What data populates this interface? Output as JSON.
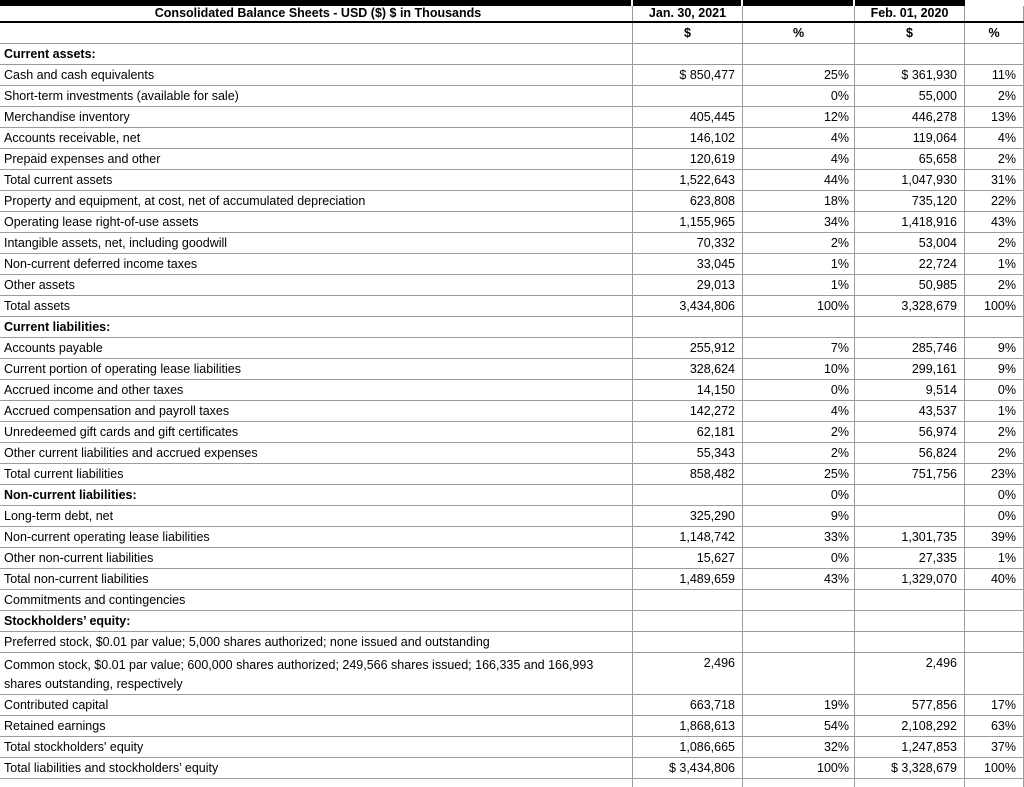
{
  "table": {
    "title": "Consolidated Balance Sheets - USD ($) $ in Thousands",
    "columns": {
      "period_1": "Jan. 30, 2021",
      "period_2": "Feb. 01, 2020",
      "dollar": "$",
      "percent": "%"
    }
  },
  "colors": {
    "top_bar": "#000000",
    "grid_border": "#9b9b9b",
    "title_rule": "#000000",
    "text": "#000000",
    "background": "#ffffff"
  },
  "rows": [
    {
      "label": "Current assets:",
      "bold": true,
      "v2021": "",
      "p2021": "",
      "v2020": "",
      "p2020": ""
    },
    {
      "label": "Cash and cash equivalents",
      "v2021": "$ 850,477",
      "p2021": "25%",
      "v2020": "$ 361,930",
      "p2020": "11%"
    },
    {
      "label": "Short-term investments (available for sale)",
      "v2021": "",
      "p2021": "0%",
      "v2020": "55,000",
      "p2020": "2%"
    },
    {
      "label": "Merchandise inventory",
      "v2021": "405,445",
      "p2021": "12%",
      "v2020": "446,278",
      "p2020": "13%"
    },
    {
      "label": "Accounts receivable, net",
      "v2021": "146,102",
      "p2021": "4%",
      "v2020": "119,064",
      "p2020": "4%"
    },
    {
      "label": "Prepaid expenses and other",
      "v2021": "120,619",
      "p2021": "4%",
      "v2020": "65,658",
      "p2020": "2%"
    },
    {
      "label": "Total current assets",
      "v2021": "1,522,643",
      "p2021": "44%",
      "v2020": "1,047,930",
      "p2020": "31%"
    },
    {
      "label": "Property and equipment, at cost, net of accumulated depreciation",
      "v2021": "623,808",
      "p2021": "18%",
      "v2020": "735,120",
      "p2020": "22%"
    },
    {
      "label": "Operating lease right-of-use assets",
      "v2021": "1,155,965",
      "p2021": "34%",
      "v2020": "1,418,916",
      "p2020": "43%"
    },
    {
      "label": "Intangible assets, net, including goodwill",
      "v2021": "70,332",
      "p2021": "2%",
      "v2020": "53,004",
      "p2020": "2%"
    },
    {
      "label": "Non-current deferred income taxes",
      "v2021": "33,045",
      "p2021": "1%",
      "v2020": "22,724",
      "p2020": "1%"
    },
    {
      "label": "Other assets",
      "v2021": "29,013",
      "p2021": "1%",
      "v2020": "50,985",
      "p2020": "2%"
    },
    {
      "label": "Total assets",
      "v2021": "3,434,806",
      "p2021": "100%",
      "v2020": "3,328,679",
      "p2020": "100%"
    },
    {
      "label": "Current liabilities:",
      "bold": true,
      "v2021": "",
      "p2021": "",
      "v2020": "",
      "p2020": ""
    },
    {
      "label": "Accounts payable",
      "v2021": "255,912",
      "p2021": "7%",
      "v2020": "285,746",
      "p2020": "9%"
    },
    {
      "label": "Current portion of operating lease liabilities",
      "v2021": "328,624",
      "p2021": "10%",
      "v2020": "299,161",
      "p2020": "9%"
    },
    {
      "label": "Accrued income and other taxes",
      "v2021": "14,150",
      "p2021": "0%",
      "v2020": "9,514",
      "p2020": "0%"
    },
    {
      "label": "Accrued compensation and payroll taxes",
      "v2021": "142,272",
      "p2021": "4%",
      "v2020": "43,537",
      "p2020": "1%"
    },
    {
      "label": "Unredeemed gift cards and gift certificates",
      "v2021": "62,181",
      "p2021": "2%",
      "v2020": "56,974",
      "p2020": "2%"
    },
    {
      "label": "Other current liabilities and accrued expenses",
      "v2021": "55,343",
      "p2021": "2%",
      "v2020": "56,824",
      "p2020": "2%"
    },
    {
      "label": "Total current liabilities",
      "v2021": "858,482",
      "p2021": "25%",
      "v2020": "751,756",
      "p2020": "23%"
    },
    {
      "label": "Non-current liabilities:",
      "bold": true,
      "v2021": "",
      "p2021": "0%",
      "v2020": "",
      "p2020": "0%"
    },
    {
      "label": "Long-term debt, net",
      "v2021": "325,290",
      "p2021": "9%",
      "v2020": "",
      "p2020": "0%"
    },
    {
      "label": "Non-current operating lease liabilities",
      "v2021": "1,148,742",
      "p2021": "33%",
      "v2020": "1,301,735",
      "p2020": "39%"
    },
    {
      "label": "Other non-current liabilities",
      "v2021": "15,627",
      "p2021": "0%",
      "v2020": "27,335",
      "p2020": "1%"
    },
    {
      "label": "Total non-current liabilities",
      "v2021": "1,489,659",
      "p2021": "43%",
      "v2020": "1,329,070",
      "p2020": "40%"
    },
    {
      "label": "Commitments and contingencies",
      "v2021": "",
      "p2021": "",
      "v2020": "",
      "p2020": ""
    },
    {
      "label": "Stockholders’ equity:",
      "bold": true,
      "v2021": "",
      "p2021": "",
      "v2020": "",
      "p2020": ""
    },
    {
      "label": "Preferred stock, $0.01 par value; 5,000 shares authorized; none issued and outstanding",
      "v2021": "",
      "p2021": "",
      "v2020": "",
      "p2020": ""
    },
    {
      "label": "Common stock, $0.01 par value; 600,000 shares authorized; 249,566 shares issued; 166,335 and 166,993 shares outstanding, respectively",
      "tall": true,
      "v2021": "2,496",
      "p2021": "",
      "v2020": "2,496",
      "p2020": ""
    },
    {
      "label": "Contributed capital",
      "v2021": "663,718",
      "p2021": "19%",
      "v2020": "577,856",
      "p2020": "17%"
    },
    {
      "label": "Retained earnings",
      "v2021": "1,868,613",
      "p2021": "54%",
      "v2020": "2,108,292",
      "p2020": "63%"
    },
    {
      "label": "Total stockholders' equity",
      "v2021": "1,086,665",
      "p2021": "32%",
      "v2020": "1,247,853",
      "p2020": "37%"
    },
    {
      "label": "Total liabilities and stockholders’ equity",
      "v2021": "$ 3,434,806",
      "p2021": "100%",
      "v2020": "$ 3,328,679",
      "p2020": "100%"
    }
  ]
}
